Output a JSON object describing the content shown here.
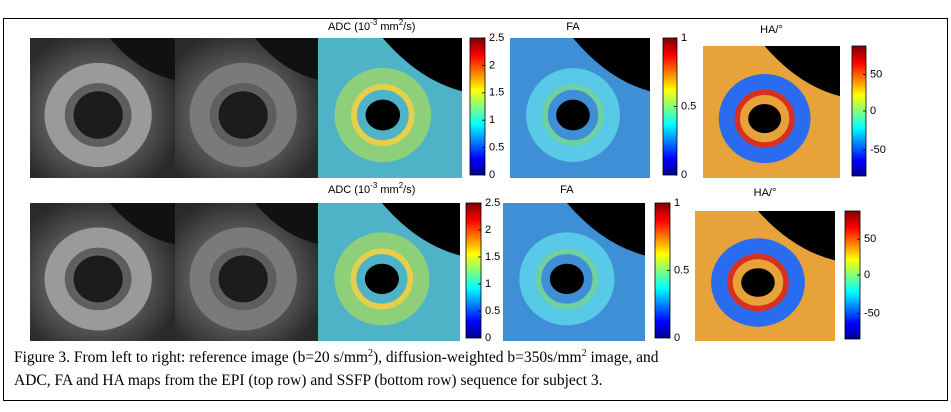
{
  "figure": {
    "rows": [
      {
        "adc": {
          "label": [
            "ADC (10",
            "-3",
            " mm",
            "2",
            "/s)"
          ],
          "ticks": [
            "2.5",
            "2",
            "1.5",
            "1",
            "0.5",
            "0"
          ]
        },
        "fa": {
          "label": "FA",
          "ticks": [
            "1",
            "0.5",
            "0"
          ]
        },
        "ha": {
          "label": "HA/°",
          "ticks": [
            "50",
            "0",
            "-50"
          ]
        }
      },
      {
        "adc": {
          "label": [
            "ADC (10",
            "-3",
            " mm",
            "2",
            "/s)"
          ],
          "ticks": [
            "2.5",
            "2",
            "1.5",
            "1",
            "0.5",
            "0"
          ]
        },
        "fa": {
          "label": "FA",
          "ticks": [
            "1",
            "0.5",
            "0"
          ]
        },
        "ha": {
          "label": "HA/°",
          "ticks": [
            "50",
            "0",
            "-50"
          ]
        }
      }
    ],
    "caption": {
      "line1": [
        "Figure 3. From left to right: reference image (b=20 s/mm",
        "2",
        "), diffusion-weighted b=350s/mm",
        "2",
        " image, and"
      ],
      "line2": "ADC, FA and HA maps from the EPI (top row) and SSFP (bottom row) sequence for subject 3."
    }
  }
}
